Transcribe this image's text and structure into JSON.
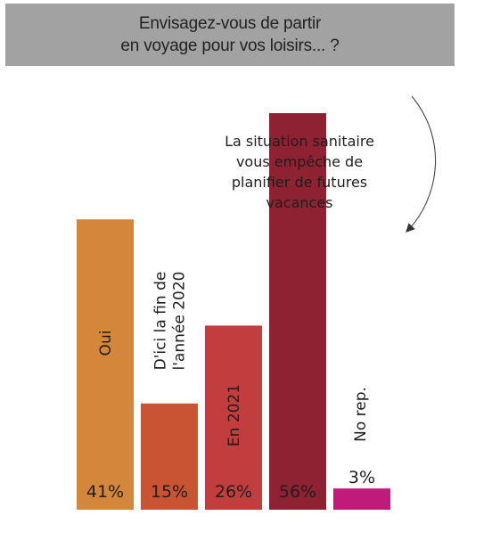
{
  "title_lines": [
    "Envisagez-vous de partir",
    "en voyage pour vos loisirs... ?"
  ],
  "chart_data": {
    "type": "bar",
    "title": "Envisagez-vous de partir en voyage pour vos loisirs... ?",
    "categories": [
      "Oui",
      "D'ici la fin de l'année 2020",
      "En 2021",
      "La situation sanitaire vous empêche de planifier de futures vacances",
      "No rep."
    ],
    "values": [
      41,
      15,
      26,
      56,
      3
    ],
    "value_labels": [
      "41%",
      "15%",
      "26%",
      "56%",
      "3%"
    ],
    "unit": "%",
    "colors": [
      "#d4873a",
      "#c85434",
      "#c23d3e",
      "#8e2233",
      "#c01a7a"
    ],
    "category_label_lines": [
      [
        "Oui"
      ],
      [
        "D'ici la fin de",
        "l'année 2020"
      ],
      [
        "En 2021"
      ],
      [],
      [
        "No rep."
      ]
    ],
    "annotation_lines": [
      "La situation sanitaire",
      "vous empêche de",
      "planifier de futures",
      "vacances"
    ],
    "annotation_arrow": true,
    "ylim": [
      0,
      56
    ],
    "grid": false,
    "legend": "none"
  }
}
